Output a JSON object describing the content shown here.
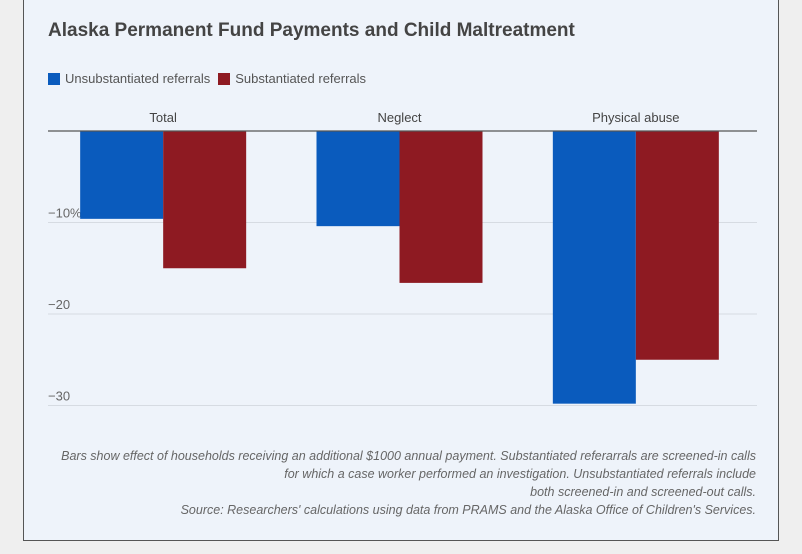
{
  "page": {
    "title": "Alaska Permanent Fund Payments and Child Maltreatment",
    "note_lines": [
      "Bars show effect of households receiving an additional $1000 annual payment. Substantiated referarrals are screened-in calls",
      "for which a case worker performed an investigation. Unsubstantiated referrals include",
      "both screened-in and screened-out calls."
    ],
    "source": "Source: Researchers' calculations using data from PRAMS and the Alaska Office of Children's Services."
  },
  "chart_data": {
    "type": "bar",
    "title": "Alaska Permanent Fund Payments and Child Maltreatment",
    "categories": [
      "Total",
      "Neglect",
      "Physical abuse"
    ],
    "series": [
      {
        "name": "Unsubstantiated referrals",
        "color": "#0a5bbd",
        "values": [
          -9.6,
          -10.4,
          -29.8
        ]
      },
      {
        "name": "Substantiated referrals",
        "color": "#8e1a22",
        "values": [
          -15.0,
          -16.6,
          -25.0
        ]
      }
    ],
    "yticks": [
      {
        "value": -10,
        "label": "−10%"
      },
      {
        "value": -20,
        "label": "−20"
      },
      {
        "value": -30,
        "label": "−30"
      }
    ],
    "ylim": [
      -30,
      0
    ],
    "grid": true,
    "legend_position": "top-left"
  }
}
